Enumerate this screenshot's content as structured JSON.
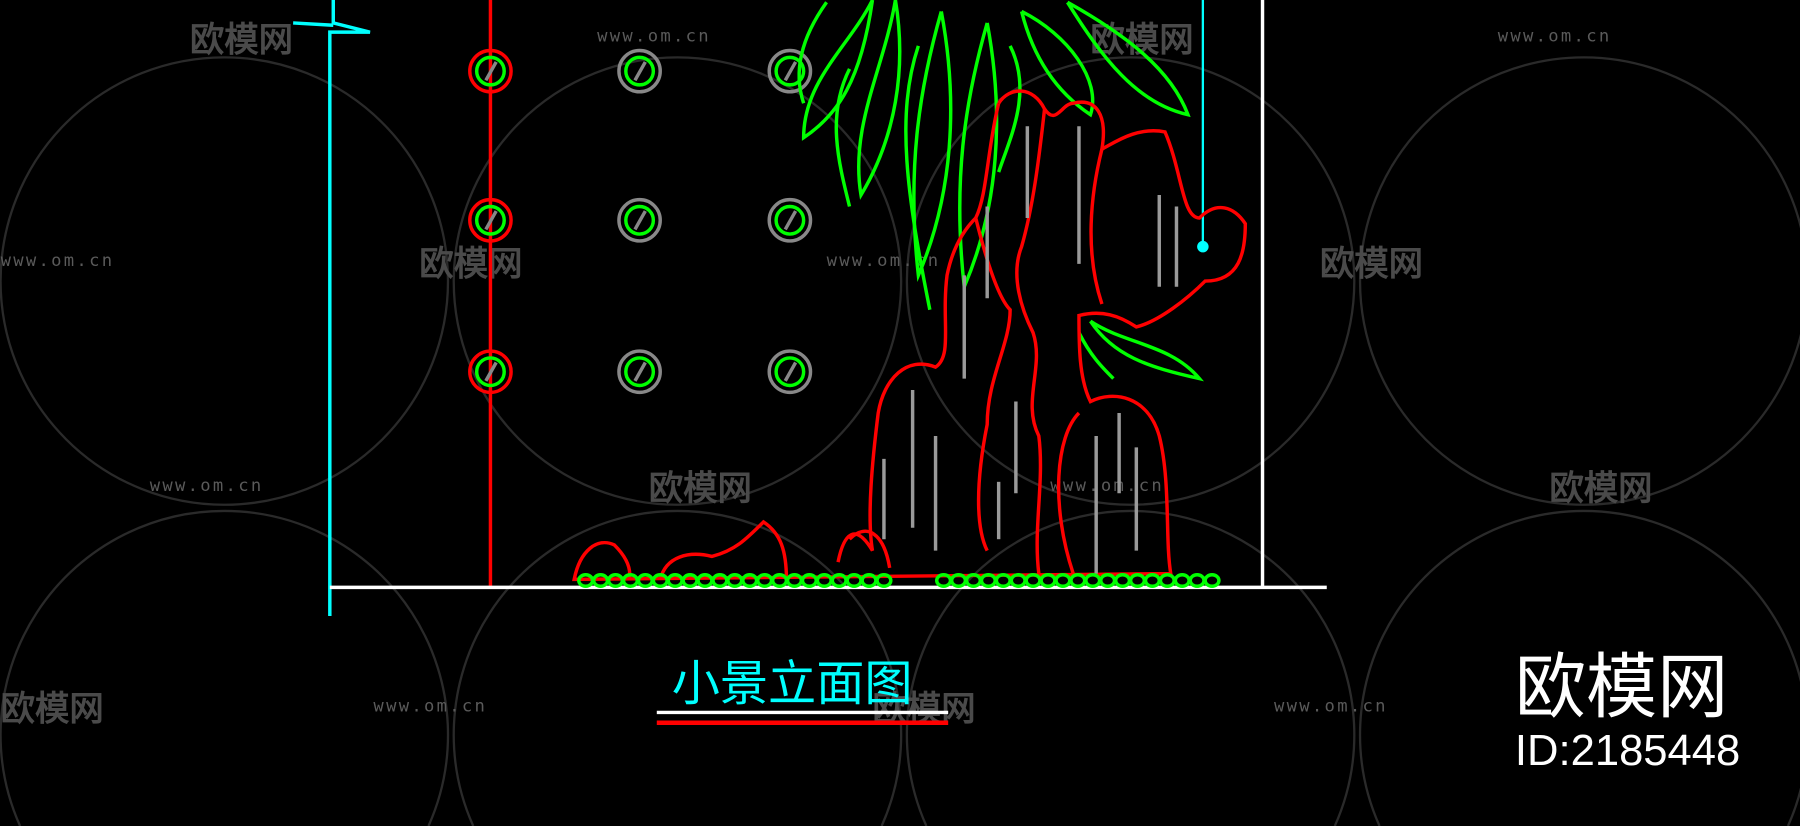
{
  "drawing": {
    "title": "小景立面图",
    "colors": {
      "background": "#000000",
      "cyan": "#00ffff",
      "red": "#ff0000",
      "green": "#00ff00",
      "white": "#ffffff",
      "gray": "#888888"
    }
  },
  "watermark": {
    "site": "www.om.cn",
    "logo": "欧模网",
    "brand": "欧模网",
    "id": "ID:2185448"
  }
}
